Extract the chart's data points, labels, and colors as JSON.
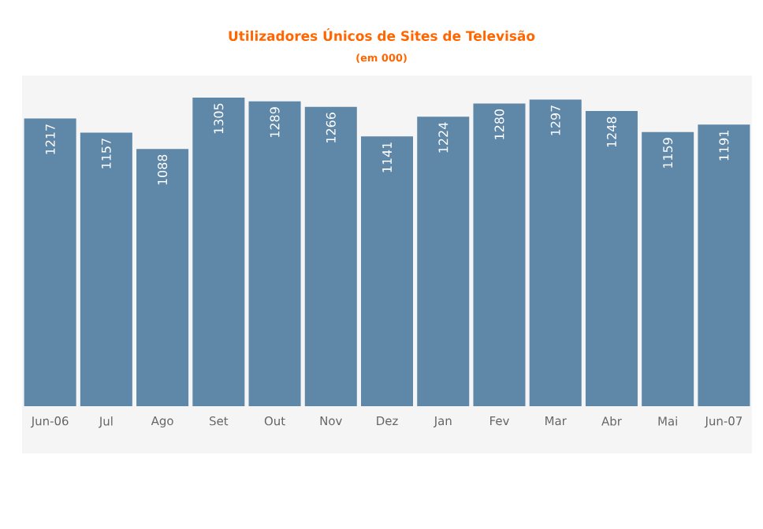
{
  "chart_data": {
    "type": "bar",
    "title": "Utilizadores Únicos de Sites de Televisão",
    "subtitle": "(em 000)",
    "categories": [
      "Jun-06",
      "Jul",
      "Ago",
      "Set",
      "Out",
      "Nov",
      "Dez",
      "Jan",
      "Fev",
      "Mar",
      "Abr",
      "Mai",
      "Jun-07"
    ],
    "values": [
      1217,
      1157,
      1088,
      1305,
      1289,
      1266,
      1141,
      1224,
      1280,
      1297,
      1248,
      1159,
      1191
    ],
    "color": "#5f87a8",
    "data_labels": true
  }
}
